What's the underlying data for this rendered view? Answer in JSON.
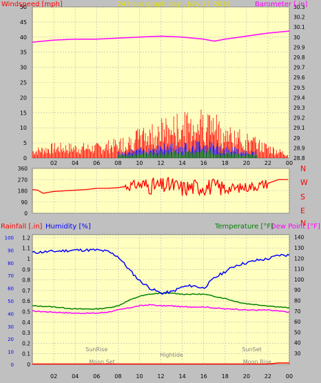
{
  "header": {
    "title": "24 hour graph day , July 27 2018",
    "left_label": "Windspeed [mph]",
    "right_label": "Barometer [.in]"
  },
  "colors": {
    "plot_bg": "#ffffc0",
    "page_bg": "#c0c0c0",
    "grid": "#b4b4b4",
    "windspeed": "#ff0000",
    "gust_blue": "#0000ff",
    "gust_green": "#008000",
    "barometer": "#ff00ff",
    "direction": "#ff0000",
    "temperature": "#008000",
    "humidity": "#0000ff",
    "dewpoint": "#ff00ff",
    "rainfall": "#ff0000",
    "title": "#e0e000"
  },
  "x_ticks": [
    "02",
    "04",
    "06",
    "08",
    "10",
    "12",
    "14",
    "16",
    "18",
    "20",
    "22",
    "00"
  ],
  "chart_data": [
    {
      "type": "line",
      "left_axis": {
        "label": "Windspeed [mph]",
        "range": [
          0,
          50
        ],
        "ticks": [
          "0",
          "5",
          "10",
          "15",
          "20",
          "25",
          "30",
          "35",
          "40",
          "45",
          "50"
        ]
      },
      "right_axis": {
        "label": "Barometer [.in]",
        "range": [
          28.8,
          30.3
        ],
        "ticks": [
          "28.8",
          "28.9",
          "29",
          "29.1",
          "29.2",
          "29.3",
          "29.4",
          "29.5",
          "29.6",
          "29.7",
          "29.8",
          "29.9",
          "30",
          "30.1",
          "30.2",
          "30.3"
        ]
      },
      "x": [
        0,
        2,
        4,
        6,
        8,
        10,
        12,
        14,
        16,
        17,
        18,
        20,
        22,
        24
      ],
      "series": [
        {
          "name": "Barometer [.in]",
          "axis": "right",
          "values": [
            29.95,
            29.97,
            29.98,
            29.98,
            29.99,
            30.0,
            30.01,
            30.0,
            29.98,
            29.96,
            29.98,
            30.01,
            30.04,
            30.06
          ]
        },
        {
          "name": "Windspeed [mph]",
          "axis": "left",
          "values": [
            2,
            3,
            3,
            3,
            4,
            6,
            8,
            9,
            11,
            9,
            7,
            5,
            3,
            1
          ]
        }
      ]
    },
    {
      "type": "line",
      "left_axis": {
        "range": [
          0,
          360
        ],
        "ticks": [
          "0",
          "90",
          "180",
          "270",
          "360"
        ]
      },
      "right_axis": {
        "ticks": [
          "N",
          "W",
          "S",
          "E",
          "N"
        ]
      },
      "x": [
        0,
        0.5,
        1,
        2,
        3,
        4,
        5,
        6,
        7,
        8,
        9,
        10,
        11,
        12,
        13,
        14,
        15,
        16,
        17,
        18,
        19,
        20,
        21,
        22,
        23,
        24
      ],
      "series": [
        {
          "values": [
            190,
            185,
            160,
            175,
            180,
            185,
            190,
            200,
            200,
            205,
            220,
            230,
            220,
            215,
            225,
            200,
            210,
            215,
            210,
            200,
            200,
            210,
            220,
            240,
            270,
            270
          ]
        }
      ]
    },
    {
      "type": "line",
      "left_axis": {
        "label": "Rainfall [.in]",
        "range": [
          0,
          100
        ],
        "ticks": [
          "0",
          "0.1",
          "0.2",
          "0.3",
          "0.4",
          "0.5",
          "0.6",
          "0.7",
          "0.8",
          "0.9",
          "1",
          "1.1",
          "1.2"
        ]
      },
      "left_axis_2": {
        "label": "Humidity [%]",
        "ticks": [
          "0",
          "10",
          "20",
          "30",
          "40",
          "50",
          "60",
          "70",
          "80",
          "90",
          "100"
        ]
      },
      "right_axis": {
        "label": "Temperature [°F]",
        "label2": "Dew Point [°F]",
        "range": [
          30,
          145
        ],
        "ticks": [
          "30",
          "40",
          "50",
          "60",
          "70",
          "80",
          "90",
          "100",
          "110",
          "120",
          "130",
          "140"
        ]
      },
      "x": [
        0,
        2,
        4,
        6,
        7,
        8,
        9,
        10,
        11,
        12,
        13,
        14,
        15,
        16,
        17,
        18,
        19,
        20,
        21,
        22,
        23,
        24
      ],
      "series": [
        {
          "name": "Humidity [%]",
          "axis": "left",
          "values": [
            88,
            89,
            90,
            90,
            89,
            85,
            75,
            66,
            60,
            56,
            57,
            61,
            62,
            60,
            68,
            73,
            78,
            80,
            82,
            83,
            86,
            86
          ]
        },
        {
          "name": "Temperature [°F]",
          "axis": "right",
          "values": [
            75,
            74,
            72,
            72,
            73,
            75,
            80,
            84,
            86,
            87,
            87,
            86,
            86,
            86,
            84,
            82,
            79,
            77,
            76,
            75,
            74,
            73
          ]
        },
        {
          "name": "Dew Point [°F]",
          "axis": "right",
          "values": [
            70,
            69,
            68,
            68,
            69,
            71,
            73,
            75,
            76,
            75,
            75,
            74,
            74,
            74,
            73,
            72,
            72,
            71,
            71,
            71,
            70,
            69
          ]
        },
        {
          "name": "Rainfall [.in]",
          "axis": "left",
          "values": [
            0,
            0,
            0,
            0,
            0,
            0,
            0,
            0,
            0,
            0,
            0,
            0,
            0,
            0,
            0,
            0,
            0,
            0,
            0,
            0,
            0.01,
            0.01
          ]
        }
      ],
      "annotations": [
        {
          "label": "SunRise",
          "x": 6.0
        },
        {
          "label": "Moon Set",
          "x": 6.5
        },
        {
          "label": "Hightide",
          "x": 13.0
        },
        {
          "label": "SunSet",
          "x": 20.5
        },
        {
          "label": "Moon Rise",
          "x": 21.0
        }
      ]
    }
  ],
  "bottom_labels": {
    "rainfall": "Rainfall [.in]",
    "humidity": "Humidity [%]",
    "temperature": "Temperature [°F]",
    "dewpoint": "Dew Point [°F]"
  },
  "compass": [
    "N",
    "W",
    "S",
    "E",
    "N"
  ]
}
